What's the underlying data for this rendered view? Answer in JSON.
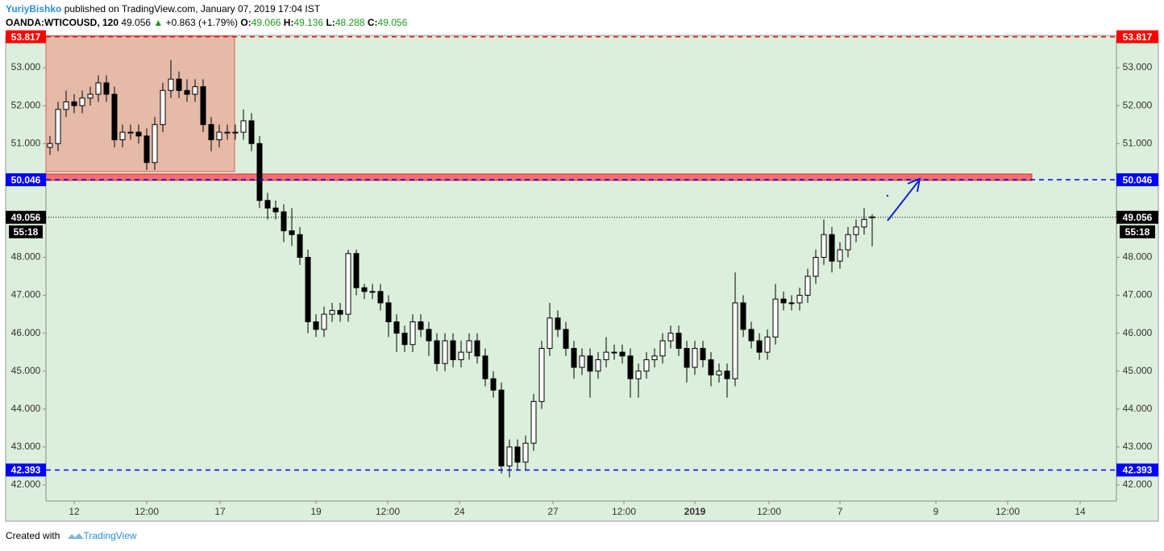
{
  "header": {
    "author": "YuriyBishko",
    "published": "published on TradingView.com, January 07, 2019 17:04 IST",
    "symbol": "OANDA:WTICOUSD, 120",
    "last": "49.056",
    "arrow": "▲",
    "change": "+0.863 (+1.79%)",
    "o_label": "O:",
    "open": "49.066",
    "h_label": "H:",
    "high": "49.136",
    "l_label": "L:",
    "low": "48.288",
    "c_label": "C:",
    "close": "49.056"
  },
  "chart_data": {
    "type": "candlestick",
    "xlim": [
      -0.5,
      132.3
    ],
    "ylim": [
      41.574,
      53.851
    ],
    "xticks": [
      {
        "value": 3.0,
        "label": "12"
      },
      {
        "value": 12.0,
        "label": "12:00"
      },
      {
        "value": 21.1,
        "label": "17"
      },
      {
        "value": 33.0,
        "label": "19"
      },
      {
        "value": 41.9,
        "label": "12:00"
      },
      {
        "value": 50.8,
        "label": "24"
      },
      {
        "value": 62.4,
        "label": "27"
      },
      {
        "value": 71.2,
        "label": "12:00"
      },
      {
        "value": 80.0,
        "label": "2019"
      },
      {
        "value": 89.2,
        "label": "12:00"
      },
      {
        "value": 98.0,
        "label": "7"
      },
      {
        "value": 109.9,
        "label": "9"
      },
      {
        "value": 118.8,
        "label": "12:00"
      },
      {
        "value": 127.8,
        "label": "14"
      }
    ],
    "yticks": [
      {
        "value": 42,
        "label": "42.000"
      },
      {
        "value": 43,
        "label": "43.000"
      },
      {
        "value": 44,
        "label": "44.000"
      },
      {
        "value": 45,
        "label": "45.000"
      },
      {
        "value": 46,
        "label": "46.000"
      },
      {
        "value": 47,
        "label": "47.000"
      },
      {
        "value": 48,
        "label": "48.000"
      },
      {
        "value": 51,
        "label": "51.000"
      },
      {
        "value": 52,
        "label": "52.000"
      },
      {
        "value": 53,
        "label": "53.000"
      }
    ],
    "up_color": "#ffffff",
    "down_color": "#000000",
    "x": [
      0,
      1,
      2,
      3,
      4,
      5,
      6,
      7,
      8,
      9,
      10,
      11,
      12,
      13,
      14,
      15,
      16,
      17,
      18,
      19,
      20,
      21,
      22,
      23,
      24,
      25,
      26,
      27,
      28,
      29,
      30,
      31,
      32,
      33,
      34,
      35,
      36,
      37,
      38,
      39,
      40,
      41,
      42,
      43,
      44,
      45,
      46,
      47,
      48,
      49,
      50,
      51,
      52,
      53,
      54,
      55,
      56,
      57,
      58,
      59,
      60,
      61,
      62,
      63,
      64,
      65,
      66,
      67,
      68,
      69,
      70,
      71,
      72,
      73,
      74,
      75,
      76,
      77,
      78,
      79,
      80,
      81,
      82,
      83,
      84,
      85,
      86,
      87,
      88,
      89,
      90,
      91,
      92,
      93,
      94,
      95,
      96,
      97,
      98,
      99,
      100,
      101,
      102
    ],
    "candles": [
      [
        50.9,
        51.2,
        50.7,
        51.0
      ],
      [
        51.0,
        52.1,
        50.8,
        51.9
      ],
      [
        51.9,
        52.4,
        51.7,
        52.1
      ],
      [
        52.1,
        52.3,
        51.8,
        52.0
      ],
      [
        52.0,
        52.4,
        51.8,
        52.2
      ],
      [
        52.2,
        52.5,
        52.0,
        52.3
      ],
      [
        52.3,
        52.8,
        52.1,
        52.6
      ],
      [
        52.6,
        52.8,
        52.1,
        52.3
      ],
      [
        52.3,
        52.5,
        50.9,
        51.1
      ],
      [
        51.1,
        51.5,
        50.9,
        51.3
      ],
      [
        51.3,
        51.5,
        51.1,
        51.3
      ],
      [
        51.3,
        51.5,
        51.0,
        51.2
      ],
      [
        51.2,
        51.4,
        50.3,
        50.5
      ],
      [
        50.5,
        51.7,
        50.3,
        51.5
      ],
      [
        51.5,
        52.6,
        51.3,
        52.4
      ],
      [
        52.4,
        53.2,
        52.2,
        52.7
      ],
      [
        52.7,
        52.9,
        52.2,
        52.4
      ],
      [
        52.4,
        52.7,
        52.1,
        52.3
      ],
      [
        52.3,
        52.7,
        52.1,
        52.5
      ],
      [
        52.5,
        52.7,
        51.3,
        51.5
      ],
      [
        51.5,
        51.7,
        50.8,
        51.1
      ],
      [
        51.1,
        51.5,
        50.9,
        51.3
      ],
      [
        51.3,
        51.5,
        51.1,
        51.3
      ],
      [
        51.3,
        51.5,
        51.1,
        51.3
      ],
      [
        51.3,
        51.9,
        51.1,
        51.6
      ],
      [
        51.6,
        51.8,
        50.8,
        51.0
      ],
      [
        51.0,
        51.2,
        49.3,
        49.5
      ],
      [
        49.5,
        49.7,
        49.0,
        49.3
      ],
      [
        49.3,
        49.5,
        49.0,
        49.2
      ],
      [
        49.2,
        49.4,
        48.4,
        48.7
      ],
      [
        48.7,
        49.3,
        48.3,
        48.6
      ],
      [
        48.6,
        48.8,
        47.8,
        48.0
      ],
      [
        48.0,
        48.2,
        46.0,
        46.3
      ],
      [
        46.3,
        46.5,
        45.9,
        46.1
      ],
      [
        46.1,
        46.7,
        45.9,
        46.5
      ],
      [
        46.5,
        46.8,
        46.3,
        46.6
      ],
      [
        46.6,
        46.8,
        46.3,
        46.5
      ],
      [
        46.5,
        48.2,
        46.3,
        48.1
      ],
      [
        48.1,
        48.2,
        47.0,
        47.2
      ],
      [
        47.2,
        47.3,
        46.9,
        47.1
      ],
      [
        47.1,
        47.3,
        46.9,
        47.1
      ],
      [
        47.1,
        47.3,
        46.6,
        46.8
      ],
      [
        46.8,
        47.0,
        45.9,
        46.3
      ],
      [
        46.3,
        46.5,
        45.5,
        46.0
      ],
      [
        46.0,
        46.2,
        45.5,
        45.7
      ],
      [
        45.7,
        46.5,
        45.5,
        46.3
      ],
      [
        46.3,
        46.5,
        45.9,
        46.1
      ],
      [
        46.1,
        46.3,
        45.4,
        45.8
      ],
      [
        45.8,
        46.0,
        45.0,
        45.2
      ],
      [
        45.2,
        46.0,
        45.0,
        45.8
      ],
      [
        45.8,
        46.0,
        45.1,
        45.3
      ],
      [
        45.3,
        45.8,
        45.1,
        45.5
      ],
      [
        45.5,
        46.0,
        45.3,
        45.8
      ],
      [
        45.8,
        46.0,
        45.2,
        45.4
      ],
      [
        45.4,
        45.6,
        44.6,
        44.8
      ],
      [
        44.8,
        45.0,
        44.3,
        44.5
      ],
      [
        44.5,
        44.7,
        42.3,
        42.5
      ],
      [
        42.5,
        43.2,
        42.2,
        43.0
      ],
      [
        43.0,
        43.2,
        42.4,
        42.6
      ],
      [
        42.6,
        43.3,
        42.4,
        43.1
      ],
      [
        43.1,
        44.4,
        42.9,
        44.2
      ],
      [
        44.2,
        45.8,
        44.0,
        45.6
      ],
      [
        45.6,
        46.8,
        45.4,
        46.4
      ],
      [
        46.4,
        46.6,
        45.9,
        46.1
      ],
      [
        46.1,
        46.3,
        45.4,
        45.6
      ],
      [
        45.6,
        45.8,
        44.8,
        45.1
      ],
      [
        45.1,
        45.6,
        44.9,
        45.4
      ],
      [
        45.4,
        45.6,
        44.3,
        45.0
      ],
      [
        45.0,
        45.5,
        44.8,
        45.3
      ],
      [
        45.3,
        45.9,
        45.1,
        45.5
      ],
      [
        45.5,
        45.7,
        45.3,
        45.5
      ],
      [
        45.5,
        45.7,
        45.2,
        45.4
      ],
      [
        45.4,
        45.6,
        44.3,
        44.8
      ],
      [
        44.8,
        45.2,
        44.3,
        45.0
      ],
      [
        45.0,
        45.5,
        44.8,
        45.3
      ],
      [
        45.3,
        45.6,
        45.1,
        45.4
      ],
      [
        45.4,
        46.0,
        45.2,
        45.8
      ],
      [
        45.8,
        46.2,
        45.6,
        46.0
      ],
      [
        46.0,
        46.2,
        45.4,
        45.6
      ],
      [
        45.6,
        45.8,
        44.7,
        45.1
      ],
      [
        45.1,
        45.8,
        44.9,
        45.6
      ],
      [
        45.6,
        45.8,
        45.1,
        45.3
      ],
      [
        45.3,
        45.5,
        44.6,
        44.9
      ],
      [
        44.9,
        45.2,
        44.7,
        45.0
      ],
      [
        45.0,
        45.2,
        44.3,
        44.8
      ],
      [
        44.8,
        47.6,
        44.6,
        46.8
      ],
      [
        46.8,
        47.0,
        45.9,
        46.1
      ],
      [
        46.1,
        46.3,
        45.6,
        45.8
      ],
      [
        45.8,
        46.0,
        45.3,
        45.5
      ],
      [
        45.5,
        46.1,
        45.3,
        45.9
      ],
      [
        45.9,
        47.3,
        45.7,
        46.9
      ],
      [
        46.9,
        47.1,
        46.6,
        46.8
      ],
      [
        46.8,
        47.0,
        46.6,
        46.8
      ],
      [
        46.8,
        47.2,
        46.6,
        47.0
      ],
      [
        47.0,
        47.7,
        46.8,
        47.5
      ],
      [
        47.5,
        48.2,
        47.3,
        48.0
      ],
      [
        48.0,
        49.0,
        47.8,
        48.6
      ],
      [
        48.6,
        48.8,
        47.6,
        47.9
      ],
      [
        47.9,
        48.4,
        47.7,
        48.2
      ],
      [
        48.2,
        48.8,
        48.0,
        48.6
      ],
      [
        48.6,
        49.0,
        48.4,
        48.8
      ],
      [
        48.8,
        49.3,
        48.6,
        49.0
      ],
      [
        49.066,
        49.136,
        48.288,
        49.056
      ]
    ],
    "levels": [
      {
        "value": 53.817,
        "color": "#ff0000",
        "style": "dashed"
      },
      {
        "value": 50.046,
        "color": "#0000ff",
        "style": "dashed"
      },
      {
        "value": 42.393,
        "color": "#0000ff",
        "style": "dashed"
      },
      {
        "value": 49.056,
        "color": "#000000",
        "style": "dotted"
      }
    ],
    "countdown": "55:18"
  },
  "footer": {
    "created": "Created with",
    "brand": "TradingView"
  }
}
